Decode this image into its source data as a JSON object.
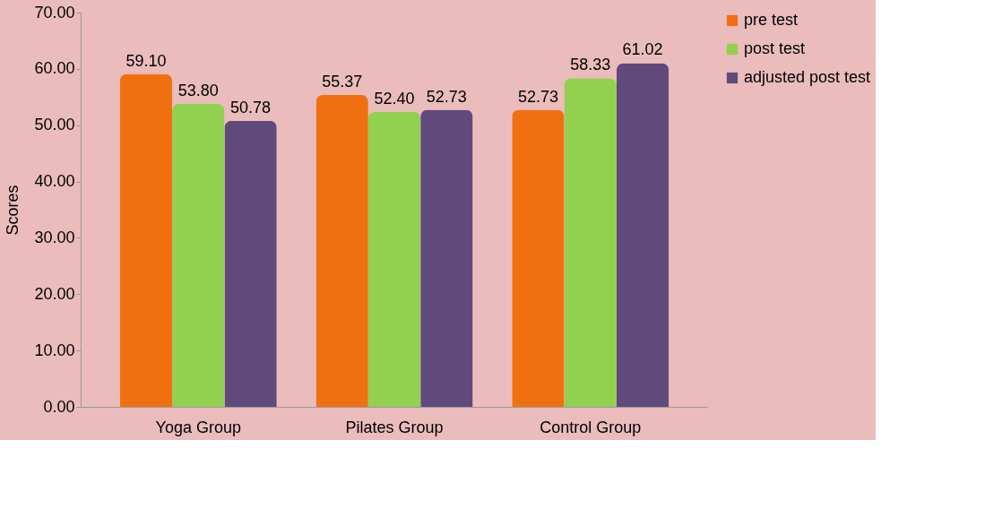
{
  "chart_data": {
    "type": "bar",
    "ylabel": "Scores",
    "categories": [
      "Yoga Group",
      "Pilates Group",
      "Control Group"
    ],
    "series": [
      {
        "name": "pre test",
        "color": "#f07010",
        "values": [
          59.1,
          55.37,
          52.73
        ],
        "value_labels": [
          "59.10",
          "55.37",
          "52.73"
        ]
      },
      {
        "name": "post test",
        "color": "#92d050",
        "values": [
          53.8,
          52.4,
          58.33
        ],
        "value_labels": [
          "53.80",
          "52.40",
          "58.33"
        ]
      },
      {
        "name": "adjusted post test",
        "color": "#604a7b",
        "values": [
          50.78,
          52.73,
          61.02
        ],
        "value_labels": [
          "50.78",
          "52.73",
          "61.02"
        ]
      }
    ],
    "ylim": [
      0,
      70
    ],
    "yticks": [
      {
        "value": 0,
        "label": "0.00"
      },
      {
        "value": 10,
        "label": "10.00"
      },
      {
        "value": 20,
        "label": "20.00"
      },
      {
        "value": 30,
        "label": "30.00"
      },
      {
        "value": 40,
        "label": "40.00"
      },
      {
        "value": 50,
        "label": "50.00"
      },
      {
        "value": 60,
        "label": "60.00"
      },
      {
        "value": 70,
        "label": "70.00"
      }
    ],
    "grid": false,
    "legend": "right"
  }
}
